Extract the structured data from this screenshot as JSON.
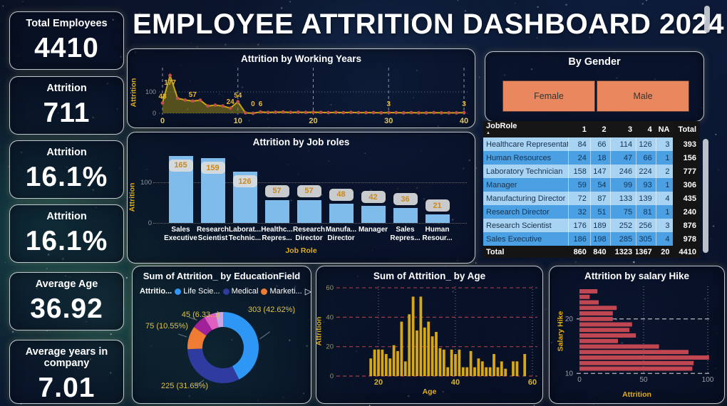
{
  "page_title": "EMPLOYEE ATTRITION DASHBOARD 2024",
  "kpis": [
    {
      "label": "Total Employees",
      "value": "4410"
    },
    {
      "label": "Attrition",
      "value": "711"
    },
    {
      "label": "Attrition",
      "value": "16.1%"
    },
    {
      "label": "Attrition",
      "value": "16.1%"
    },
    {
      "label": "Average Age",
      "value": "36.92"
    },
    {
      "label": "Average years in company",
      "value": "7.01"
    }
  ],
  "gender": {
    "title": "By Gender",
    "options": [
      "Female",
      "Male"
    ],
    "button_color": "#e9885f"
  },
  "chart_data": [
    {
      "id": "working_years",
      "type": "area",
      "title": "Attrition by Working Years",
      "xlabel": "",
      "ylabel": "Attrition",
      "x_start": 0,
      "values": [
        48,
        177,
        70,
        62,
        57,
        61,
        34,
        38,
        34,
        24,
        54,
        2,
        0,
        6,
        4,
        5,
        6,
        4,
        5,
        4,
        5,
        4,
        3,
        4,
        3,
        4,
        3,
        3,
        3,
        2,
        3,
        3,
        2,
        3,
        2,
        2,
        3,
        2,
        2,
        2,
        3
      ],
      "point_labels": {
        "0": "48",
        "1": "177",
        "4": "57",
        "9": "24",
        "10": "54",
        "12": "0",
        "13": "6",
        "30": "3",
        "40": "3"
      },
      "x_ticks": [
        0,
        10,
        20,
        30,
        40
      ],
      "y_ticks": [
        0,
        100
      ],
      "ylim": [
        0,
        190
      ],
      "line_color": "#c9a50a",
      "area_color": "rgba(148,133,24,0.55)",
      "marker_color": "#c0504d"
    },
    {
      "id": "job_roles",
      "type": "bar",
      "title": "Attrition by Job roles",
      "xlabel": "Job Role",
      "ylabel": "Attrition",
      "categories": [
        [
          "Sales",
          "Executive"
        ],
        [
          "Research",
          "Scientist"
        ],
        [
          "Laborat...",
          "Technic..."
        ],
        [
          "Healthc...",
          "Repres..."
        ],
        [
          "Research",
          "Director"
        ],
        [
          "Manufa...",
          "Director"
        ],
        [
          "Manager"
        ],
        [
          "Sales",
          "Repres..."
        ],
        [
          "Human",
          "Resour..."
        ]
      ],
      "values": [
        165,
        159,
        126,
        57,
        57,
        48,
        42,
        36,
        21
      ],
      "y_ticks": [
        0,
        100
      ],
      "ylim": [
        0,
        175
      ],
      "bar_color": "#7fbcec"
    },
    {
      "id": "jobrole_table",
      "type": "table",
      "columns": [
        "JobRole",
        "1",
        "2",
        "3",
        "4",
        "NA",
        "Total"
      ],
      "rows": [
        [
          "Healthcare Representative",
          84,
          66,
          114,
          126,
          3,
          393
        ],
        [
          "Human Resources",
          24,
          18,
          47,
          66,
          1,
          156
        ],
        [
          "Laboratory Technician",
          158,
          147,
          246,
          224,
          2,
          777
        ],
        [
          "Manager",
          59,
          54,
          99,
          93,
          1,
          306
        ],
        [
          "Manufacturing Director",
          72,
          87,
          133,
          139,
          4,
          435
        ],
        [
          "Research Director",
          32,
          51,
          75,
          81,
          1,
          240
        ],
        [
          "Research Scientist",
          176,
          189,
          252,
          256,
          3,
          876
        ],
        [
          "Sales Executive",
          186,
          198,
          285,
          305,
          4,
          978
        ]
      ],
      "total_row": [
        "Total",
        860,
        840,
        1323,
        1367,
        20,
        4410
      ]
    },
    {
      "id": "education_field",
      "type": "donut",
      "title": "Sum of Attrition_ by EducationField",
      "legend_label": "Attritio...",
      "legend": [
        {
          "label": "Life Scie...",
          "color": "#2e96f5"
        },
        {
          "label": "Medical",
          "color": "#2f3b9e"
        },
        {
          "label": "Marketi...",
          "color": "#f07b33"
        }
      ],
      "slices": [
        {
          "value": 303,
          "pct": 42.62,
          "color": "#2e96f5",
          "label": "303 (42.62%)"
        },
        {
          "value": 225,
          "pct": 31.65,
          "color": "#2f3b9e",
          "label": "225 (31.65%)"
        },
        {
          "value": 75,
          "pct": 10.55,
          "color": "#f07b33",
          "label": "75 (10.55%)"
        },
        {
          "value": 45,
          "pct": 6.33,
          "color": "#a1219b",
          "label": "45 (6.33...)"
        },
        {
          "value": 38,
          "pct": 5.34,
          "color": "#e060c0",
          "label": ""
        },
        {
          "value": 25,
          "pct": 3.51,
          "color": "#c9a6e3",
          "label": ""
        }
      ]
    },
    {
      "id": "age",
      "type": "bar",
      "title": "Sum of Attrition_ by Age",
      "xlabel": "Age",
      "ylabel": "Attrition",
      "x_start": 18,
      "values": [
        12,
        18,
        18,
        18,
        15,
        12,
        21,
        17,
        37,
        10,
        42,
        54,
        31,
        54,
        33,
        37,
        27,
        30,
        19,
        18,
        6,
        18,
        15,
        18,
        6,
        6,
        17,
        6,
        12,
        10,
        6,
        6,
        15,
        6,
        10,
        5,
        0,
        10,
        10,
        0,
        15
      ],
      "x_ticks": [
        20,
        40,
        60
      ],
      "y_ticks": [
        0,
        20,
        40,
        60
      ],
      "ylim": [
        0,
        60
      ],
      "bar_color": "#d8a714"
    },
    {
      "id": "salary_hike",
      "type": "hbar",
      "title": "Attrition by salary Hike",
      "xlabel": "Attrition",
      "ylabel": "Salary Hike",
      "categories": [
        25,
        24,
        23,
        22,
        21,
        20,
        19,
        18,
        17,
        16,
        15,
        14,
        13,
        12,
        11
      ],
      "values": [
        14,
        8,
        15,
        29,
        26,
        26,
        41,
        39,
        44,
        30,
        62,
        85,
        101,
        89,
        88
      ],
      "x_ticks": [
        0,
        50,
        100
      ],
      "y_ticks": [
        20,
        10
      ],
      "xlim": [
        0,
        105
      ],
      "bar_color": "#c04652"
    }
  ]
}
